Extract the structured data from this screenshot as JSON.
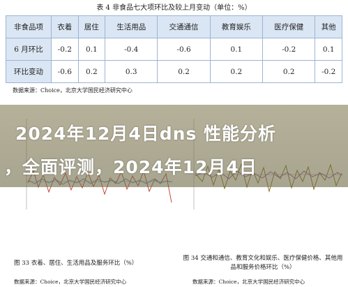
{
  "table_title": "表 4  非食品七大项环比及较上月变动（单位：%）",
  "table": {
    "header": [
      "非食品项",
      "衣着",
      "居住",
      "生活用品",
      "交通通信",
      "教育娱乐",
      "医疗保健",
      "其他"
    ],
    "rows": [
      [
        "6 月环比",
        "-0.2",
        "0.1",
        "-0.4",
        "-0.6",
        "0.1",
        "-0.2",
        "0.1"
      ],
      [
        "环比变动",
        "-0.6",
        "0.2",
        "0.3",
        "0.2",
        "0.2",
        "0.2",
        "-0.2"
      ]
    ]
  },
  "table_source": "数据来源：Choice，北京大学国民经济研究中心",
  "overlay_title": {
    "lines": [
      "2024年12月4日dns 性能分析",
      "，全面评测，2024年12月4日"
    ]
  },
  "figures": [
    {
      "caption": "图 33  衣着、居住、生活用品及服务环比（%）",
      "source": "数据来源：Choice，北京大学国民经济研究中心"
    },
    {
      "caption": "图 34  交通和通信、教育文化和娱乐、医疗保健价格、其他用品和服务价格环比（%）",
      "source": "数据来源：Choice，北京大学国民经济研究中心"
    }
  ]
}
